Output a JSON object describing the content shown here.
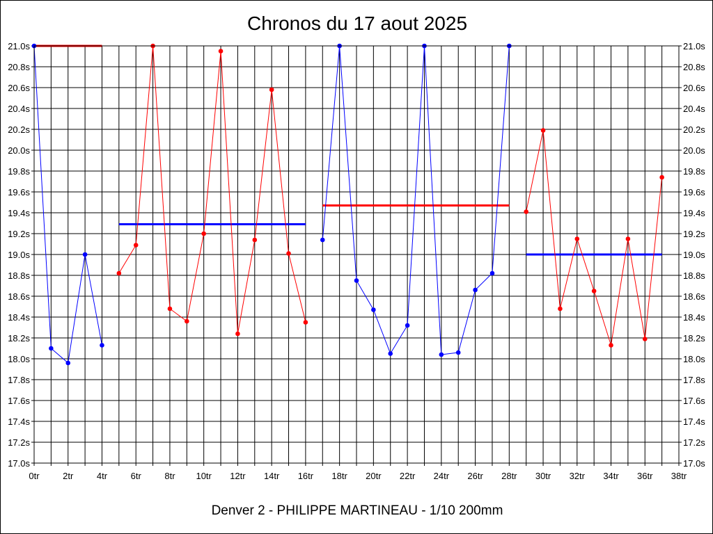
{
  "chart_data": {
    "type": "line",
    "title": "Chronos du 17 aout 2025",
    "footer": "Denver 2 - PHILIPPE MARTINEAU - 1/10 200mm",
    "xlabel": "",
    "ylabel": "",
    "xlim": [
      0,
      38
    ],
    "ylim": [
      17.0,
      21.0
    ],
    "x_ticks": [
      "0tr",
      "2tr",
      "4tr",
      "6tr",
      "8tr",
      "10tr",
      "12tr",
      "14tr",
      "16tr",
      "18tr",
      "20tr",
      "22tr",
      "24tr",
      "26tr",
      "28tr",
      "30tr",
      "32tr",
      "34tr",
      "36tr",
      "38tr"
    ],
    "y_ticks": [
      "17.0s",
      "17.2s",
      "17.4s",
      "17.6s",
      "17.8s",
      "18.0s",
      "18.2s",
      "18.4s",
      "18.6s",
      "18.8s",
      "19.0s",
      "19.2s",
      "19.4s",
      "19.6s",
      "19.8s",
      "20.0s",
      "20.2s",
      "20.4s",
      "20.6s",
      "20.8s",
      "21.0s"
    ],
    "grid": true,
    "series": [
      {
        "color": "#0000ff",
        "mean": 21.0,
        "mean_color": "#ff0000",
        "points": [
          [
            0,
            21.0
          ],
          [
            1,
            18.1
          ],
          [
            2,
            17.96
          ],
          [
            3,
            19.0
          ],
          [
            4,
            18.13
          ]
        ]
      },
      {
        "color": "#ff0000",
        "mean": 19.29,
        "mean_color": "#0000ff",
        "points": [
          [
            5,
            18.82
          ],
          [
            6,
            19.09
          ],
          [
            7,
            21.0
          ],
          [
            8,
            18.48
          ],
          [
            9,
            18.36
          ],
          [
            10,
            19.2
          ],
          [
            11,
            20.95
          ],
          [
            12,
            18.24
          ],
          [
            13,
            19.14
          ],
          [
            14,
            20.58
          ],
          [
            15,
            19.01
          ],
          [
            16,
            18.35
          ]
        ]
      },
      {
        "color": "#0000ff",
        "mean": 19.47,
        "mean_color": "#ff0000",
        "points": [
          [
            17,
            19.14
          ],
          [
            18,
            21.0
          ],
          [
            19,
            18.75
          ],
          [
            20,
            18.47
          ],
          [
            21,
            18.05
          ],
          [
            22,
            18.32
          ],
          [
            23,
            21.0
          ],
          [
            24,
            18.04
          ],
          [
            25,
            18.06
          ],
          [
            26,
            18.66
          ],
          [
            27,
            18.82
          ],
          [
            28,
            21.0
          ]
        ]
      },
      {
        "color": "#ff0000",
        "mean": 19.0,
        "mean_color": "#0000ff",
        "points": [
          [
            29,
            19.41
          ],
          [
            30,
            20.19
          ],
          [
            31,
            18.48
          ],
          [
            32,
            19.15
          ],
          [
            33,
            18.65
          ],
          [
            34,
            18.13
          ],
          [
            35,
            19.15
          ],
          [
            36,
            18.19
          ],
          [
            37,
            19.74
          ]
        ]
      }
    ]
  }
}
